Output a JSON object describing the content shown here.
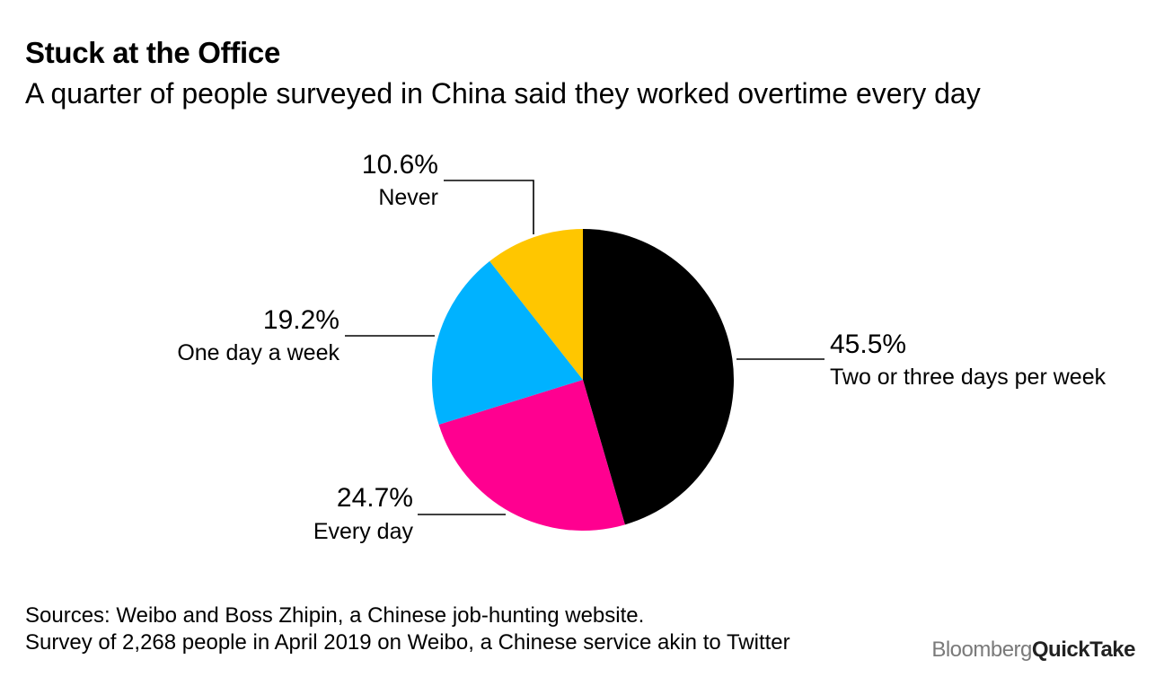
{
  "title": "Stuck at the Office",
  "subtitle": "A quarter of people surveyed in China said they worked overtime every day",
  "footer": {
    "source_line_1": "Sources: Weibo and Boss Zhipin, a Chinese job-hunting website.",
    "source_line_2": "Survey of 2,268 people in April 2019 on Weibo, a Chinese service akin to Twitter",
    "brand_part_1": "Bloomberg",
    "brand_part_2": "QuickTake"
  },
  "chart_data": {
    "type": "pie",
    "title": "Stuck at the Office",
    "start_angle_deg": 0,
    "direction": "clockwise",
    "slices": [
      {
        "label": "Two or three days per week",
        "value": 45.5,
        "value_label": "45.5%",
        "color": "#000000"
      },
      {
        "label": "Every day",
        "value": 24.7,
        "value_label": "24.7%",
        "color": "#ff0090"
      },
      {
        "label": "One day a week",
        "value": 19.2,
        "value_label": "19.2%",
        "color": "#00b2ff"
      },
      {
        "label": "Never",
        "value": 10.6,
        "value_label": "10.6%",
        "color": "#ffc600"
      }
    ]
  }
}
